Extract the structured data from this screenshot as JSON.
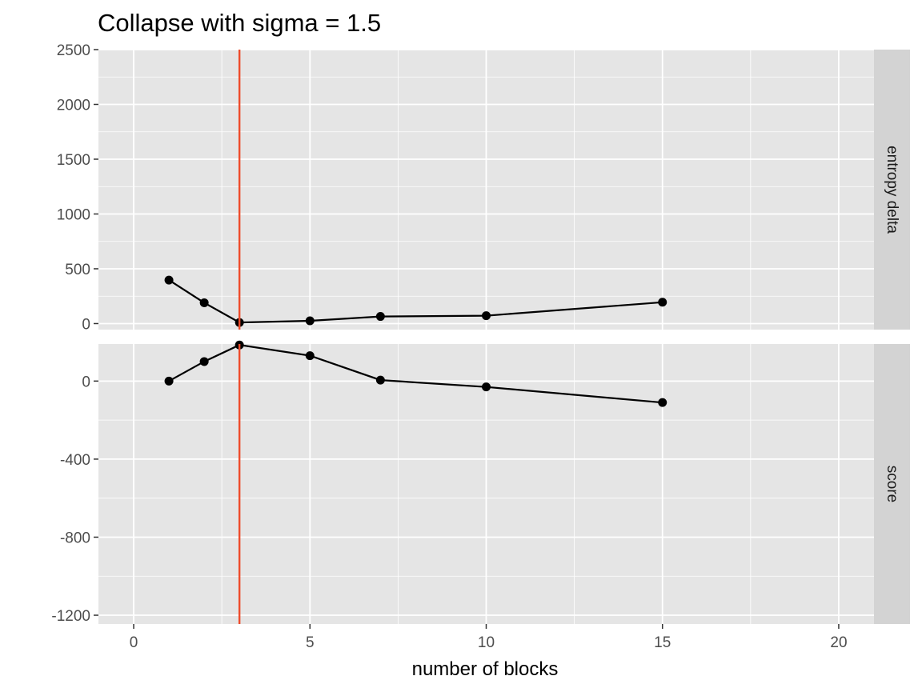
{
  "chart_data": {
    "type": "line",
    "title": "Collapse with sigma = 1.5",
    "xlabel": "number of blocks",
    "ylabel": "",
    "x_ticks": [
      0,
      5,
      10,
      15,
      20
    ],
    "xlim": [
      -1,
      21
    ],
    "grid": true,
    "legend": "none",
    "vline": {
      "x": 3,
      "color": "#ee4b2b"
    },
    "line_color": "#000000",
    "panel_background": "#e5e5e5",
    "strip_background": "#d3d3d3",
    "facets": [
      {
        "label": "entropy delta",
        "ylim": [
          -55,
          2500
        ],
        "y_ticks": [
          0,
          500,
          1000,
          1500,
          2000,
          2500
        ],
        "series": [
          {
            "x": [
              1,
              2,
              3,
              5,
              7,
              10,
              15
            ],
            "y": [
              397,
              190,
              10,
              25,
              65,
              72,
              195
            ]
          }
        ]
      },
      {
        "label": "score",
        "ylim": [
          -1245,
          190
        ],
        "y_ticks": [
          -1200,
          -800,
          -400,
          0
        ],
        "series": [
          {
            "x": [
              1,
              2,
              3,
              5,
              7,
              10,
              15
            ],
            "y": [
              0,
              100,
              185,
              130,
              5,
              -30,
              -110
            ]
          }
        ]
      }
    ]
  }
}
